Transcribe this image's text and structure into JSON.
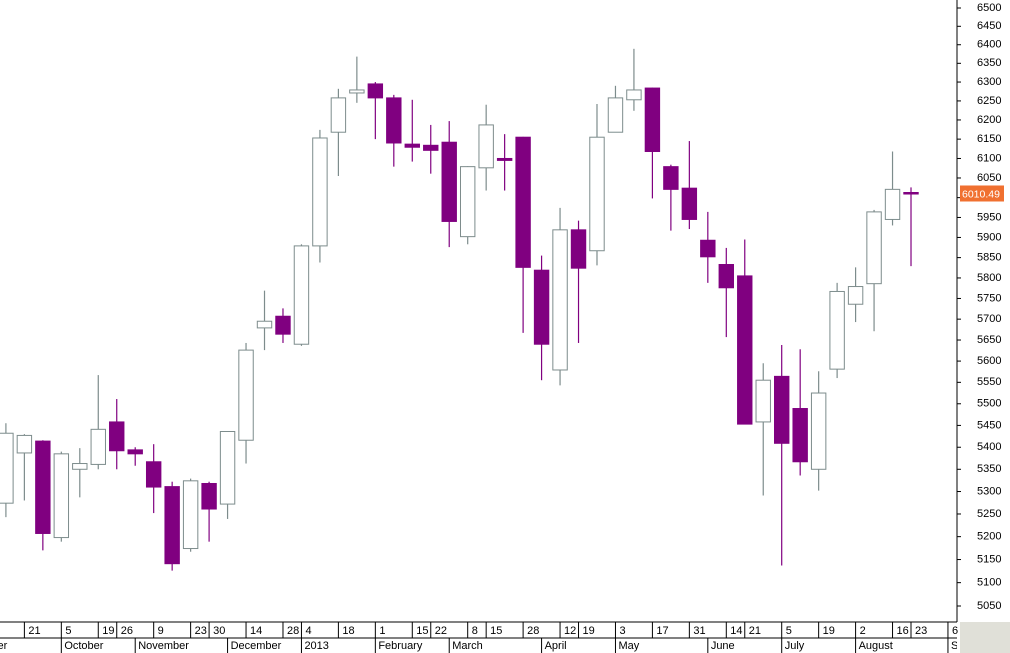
{
  "chart_data": {
    "type": "candlestick",
    "log": true,
    "open": [
      5274,
      5387,
      5414,
      5198,
      5350,
      5361,
      5458,
      5394,
      5367,
      5311,
      5174,
      5318,
      5272,
      5416,
      5679,
      5707,
      5640,
      5879,
      6168,
      6271,
      6295,
      6258,
      6137,
      6134,
      6142,
      5902,
      6076,
      6100,
      6155,
      5819,
      5579,
      5919,
      5867,
      6168,
      6253,
      6284,
      6079,
      6024,
      5893,
      5833,
      5805,
      5458,
      5564,
      5489,
      5350,
      5581,
      5736,
      5786,
      5945,
      6013
    ],
    "high": [
      5455,
      5430,
      5416,
      5390,
      5398,
      5567,
      5511,
      5400,
      5407,
      5322,
      5329,
      5322,
      5437,
      5643,
      5769,
      5726,
      5883,
      6174,
      6282,
      6368,
      6300,
      6266,
      6253,
      6187,
      6197,
      6080,
      6240,
      6163,
      6156,
      5855,
      5974,
      5942,
      6242,
      6290,
      6389,
      6285,
      6084,
      6145,
      5964,
      5874,
      5895,
      5595,
      5638,
      5628,
      5576,
      5788,
      5826,
      5969,
      6118,
      6026
    ],
    "low": [
      5243,
      5280,
      5170,
      5189,
      5287,
      5350,
      5350,
      5358,
      5252,
      5126,
      5167,
      5189,
      5239,
      5363,
      5626,
      5643,
      5636,
      5838,
      6055,
      6245,
      6150,
      6079,
      6092,
      6061,
      5876,
      5883,
      6018,
      6018,
      5667,
      5555,
      5543,
      5643,
      5831,
      6168,
      6224,
      5998,
      5917,
      5921,
      5788,
      5657,
      5453,
      5291,
      5137,
      5336,
      5302,
      5560,
      5693,
      5671,
      5930,
      5829
    ],
    "close": [
      5432,
      5427,
      5207,
      5385,
      5363,
      5441,
      5392,
      5385,
      5310,
      5141,
      5324,
      5261,
      5436,
      5626,
      5695,
      5664,
      5879,
      6153,
      6258,
      6279,
      6258,
      6140,
      6129,
      6121,
      5940,
      6079,
      6187,
      6095,
      5826,
      5640,
      5919,
      5824,
      6155,
      6258,
      6279,
      6118,
      6021,
      5945,
      5852,
      5776,
      5453,
      5555,
      5409,
      5367,
      5525,
      5767,
      5779,
      5964,
      6021,
      6010.49
    ],
    "up_color": "#ffffff",
    "up_edge": "#7d8c8c",
    "down_color": "#800080",
    "last_color": "#f07030",
    "ylim": [
      5016,
      6522
    ],
    "yticks": [
      5050,
      5100,
      5150,
      5200,
      5250,
      5300,
      5350,
      5400,
      5450,
      5500,
      5550,
      5600,
      5650,
      5700,
      5750,
      5800,
      5850,
      5900,
      5950,
      6000,
      6050,
      6100,
      6150,
      6200,
      6250,
      6300,
      6350,
      6400,
      6450,
      6500
    ],
    "xlim": [
      -0.32,
      51.49
    ],
    "xticks": [
      {
        "value": 1,
        "label": "21"
      },
      {
        "value": 3,
        "label": "5"
      },
      {
        "value": 5,
        "label": "19"
      },
      {
        "value": 6,
        "label": "26"
      },
      {
        "value": 8,
        "label": "9"
      },
      {
        "value": 10,
        "label": "23"
      },
      {
        "value": 11,
        "label": "30"
      },
      {
        "value": 13,
        "label": "14"
      },
      {
        "value": 15,
        "label": "28"
      },
      {
        "value": 16,
        "label": "4"
      },
      {
        "value": 18,
        "label": "18"
      },
      {
        "value": 20,
        "label": "1"
      },
      {
        "value": 22,
        "label": "15"
      },
      {
        "value": 23,
        "label": "22"
      },
      {
        "value": 25,
        "label": "8"
      },
      {
        "value": 26,
        "label": "15"
      },
      {
        "value": 28,
        "label": "28"
      },
      {
        "value": 30,
        "label": "12"
      },
      {
        "value": 31,
        "label": "19"
      },
      {
        "value": 33,
        "label": "3"
      },
      {
        "value": 35,
        "label": "17"
      },
      {
        "value": 37,
        "label": "31"
      },
      {
        "value": 39,
        "label": "14"
      },
      {
        "value": 40,
        "label": "21"
      },
      {
        "value": 42,
        "label": "5"
      },
      {
        "value": 44,
        "label": "19"
      },
      {
        "value": 46,
        "label": "2"
      },
      {
        "value": 48,
        "label": "16"
      },
      {
        "value": 49,
        "label": "23"
      },
      {
        "value": 51,
        "label": "6"
      }
    ],
    "month_ticks": [
      {
        "value": -3,
        "label": "September"
      },
      {
        "value": 3,
        "label": "October"
      },
      {
        "value": 7,
        "label": "November"
      },
      {
        "value": 12,
        "label": "December"
      },
      {
        "value": 16,
        "label": "2013"
      },
      {
        "value": 20,
        "label": "February"
      },
      {
        "value": 24,
        "label": "March"
      },
      {
        "value": 29,
        "label": "April"
      },
      {
        "value": 33,
        "label": "May"
      },
      {
        "value": 38,
        "label": "June"
      },
      {
        "value": 42,
        "label": "July"
      },
      {
        "value": 46,
        "label": "August"
      },
      {
        "value": 51,
        "label": "September"
      }
    ]
  }
}
